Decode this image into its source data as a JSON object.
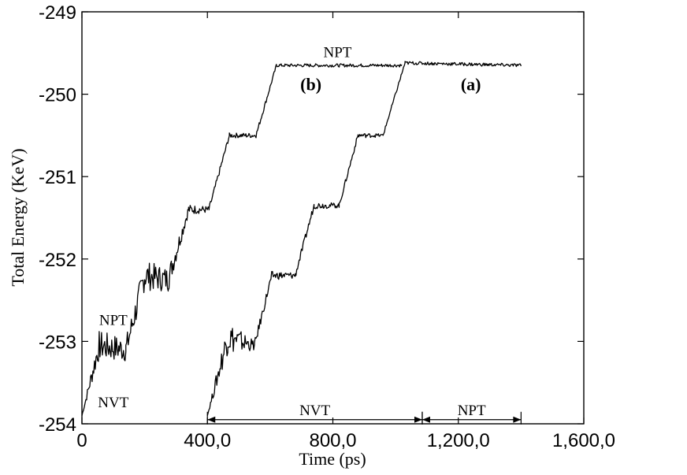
{
  "chart_data": {
    "type": "line",
    "title": "",
    "xlabel": "Time (ps)",
    "ylabel": "Total Energy (KeV)",
    "xlim": [
      0,
      1600
    ],
    "ylim": [
      -254,
      -249
    ],
    "x_ticks": [
      0,
      400,
      800,
      1200,
      1600
    ],
    "x_tick_labels": [
      "0",
      "400,0",
      "800,0",
      "1,200,0",
      "1,600,0"
    ],
    "y_ticks": [
      -254,
      -253,
      -252,
      -251,
      -250,
      -249
    ],
    "y_tick_labels": [
      "-254",
      "-253",
      "-252",
      "-251",
      "-250",
      "-249"
    ],
    "grid": false,
    "legend": "none",
    "series": [
      {
        "label": "(b)",
        "x": [
          0,
          55,
          140,
          200,
          275,
          340,
          405,
          470,
          555,
          620,
          1020
        ],
        "y": [
          -253.9,
          -253.05,
          -253.1,
          -252.2,
          -252.25,
          -251.4,
          -251.4,
          -250.5,
          -250.5,
          -249.65,
          -249.65
        ],
        "band": [
          0,
          0.18,
          0.15,
          0.18,
          0.15,
          0.06,
          0.04,
          0.03,
          0.03,
          0.02,
          0.02
        ]
      },
      {
        "label": "(a)",
        "x": [
          400,
          465,
          550,
          605,
          680,
          740,
          820,
          880,
          960,
          1030,
          1400
        ],
        "y": [
          -253.9,
          -252.95,
          -253.05,
          -252.2,
          -252.2,
          -251.35,
          -251.35,
          -250.5,
          -250.5,
          -249.62,
          -249.65
        ],
        "band": [
          0,
          0.2,
          0.06,
          0.05,
          0.04,
          0.04,
          0.03,
          0.03,
          0.02,
          0.02,
          0.02
        ]
      }
    ],
    "annotations": [
      {
        "text": "NPT",
        "x": 815,
        "y": -249.55,
        "style": "normal"
      },
      {
        "text": "(b)",
        "x": 730,
        "y": -249.95,
        "style": "bold"
      },
      {
        "text": "(a)",
        "x": 1240,
        "y": -249.95,
        "style": "bold"
      },
      {
        "text": "NPT",
        "x": 100,
        "y": -252.8,
        "style": "normal"
      },
      {
        "text": "NVT",
        "x": 100,
        "y": -253.8,
        "style": "normal"
      }
    ],
    "ranges": [
      {
        "text": "NVT",
        "from": 400,
        "to": 1085,
        "y": -253.95
      },
      {
        "text": "NPT",
        "from": 1085,
        "to": 1400,
        "y": -253.95
      }
    ]
  }
}
